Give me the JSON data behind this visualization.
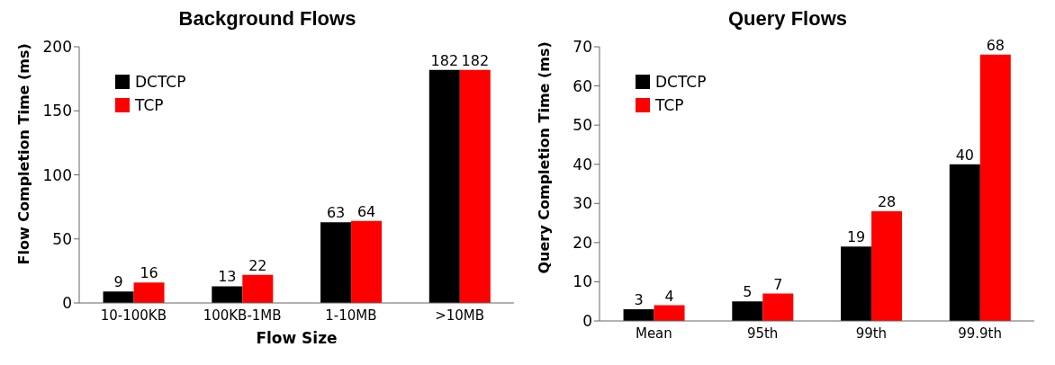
{
  "chart_data": [
    {
      "type": "bar",
      "title": "Background Flows",
      "xlabel": "Flow Size",
      "ylabel": "Flow Completion Time (ms)",
      "categories": [
        "10-100KB",
        "100KB-1MB",
        "1-10MB",
        ">10MB"
      ],
      "series": [
        {
          "name": "DCTCP",
          "color": "#000000",
          "values": [
            9,
            13,
            63,
            182
          ]
        },
        {
          "name": "TCP",
          "color": "#ff0000",
          "values": [
            16,
            22,
            64,
            182
          ]
        }
      ],
      "ylim": [
        0,
        200
      ],
      "yticks": [
        0,
        50,
        100,
        150,
        200
      ],
      "legend": "top left",
      "data_labels": true
    },
    {
      "type": "bar",
      "title": "Query Flows",
      "ylabel": "Query Completion Time (ms)",
      "categories": [
        "Mean",
        "95th",
        "99th",
        "99.9th"
      ],
      "series": [
        {
          "name": "DCTCP",
          "color": "#000000",
          "values": [
            3,
            5,
            19,
            40
          ]
        },
        {
          "name": "TCP",
          "color": "#ff0000",
          "values": [
            4,
            7,
            28,
            68
          ]
        }
      ],
      "ylim": [
        0,
        70
      ],
      "yticks": [
        0,
        10,
        20,
        30,
        40,
        50,
        60,
        70
      ],
      "legend": "top left",
      "data_labels": true
    }
  ]
}
